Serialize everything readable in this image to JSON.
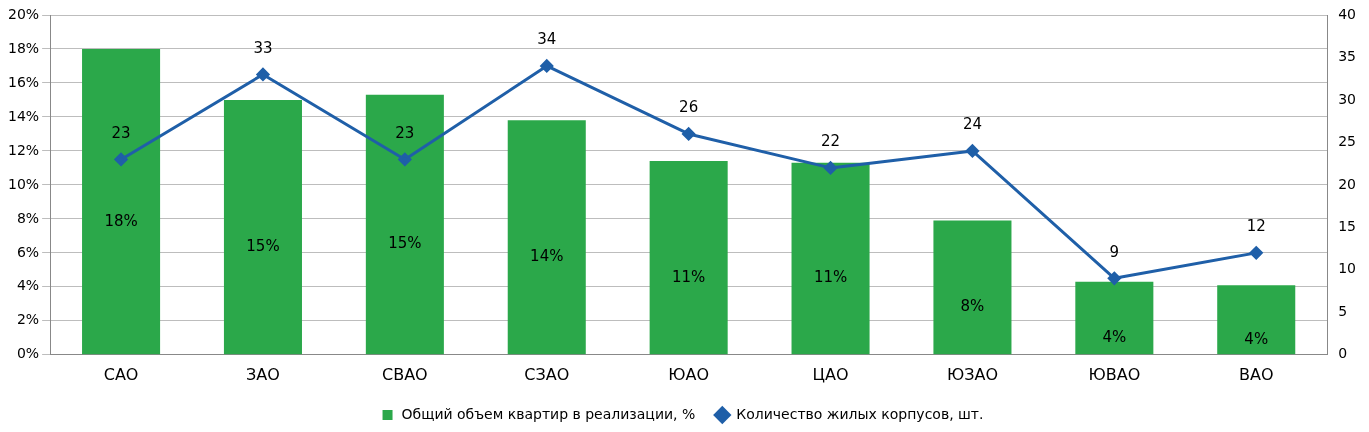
{
  "chart_data": {
    "type": "bar",
    "categories": [
      "САО",
      "ЗАО",
      "СВАО",
      "СЗАО",
      "ЮАО",
      "ЦАО",
      "ЮЗАО",
      "ЮВАО",
      "ВАО"
    ],
    "series": [
      {
        "name": "Общий объем квартир в реализации, %",
        "color": "#2ba84a",
        "values": [
          18,
          15,
          15.3,
          13.8,
          11.4,
          11.3,
          7.9,
          4.3,
          4.1
        ],
        "value_labels": [
          "18%",
          "15%",
          "15%",
          "14%",
          "11%",
          "11%",
          "8%",
          "4%",
          "4%"
        ]
      },
      {
        "name": "Количество жилых корпусов, шт.",
        "type": "line",
        "axis": "y2",
        "color": "#1f5fa8",
        "marker": "diamond",
        "values": [
          23,
          33,
          23,
          34,
          26,
          22,
          24,
          9,
          12
        ],
        "value_labels": [
          "23",
          "33",
          "23",
          "34",
          "26",
          "22",
          "24",
          "9",
          "12"
        ]
      }
    ],
    "ylim": [
      0,
      20
    ],
    "yticks": [
      {
        "value": 0,
        "label": "0%"
      },
      {
        "value": 2,
        "label": "2%"
      },
      {
        "value": 4,
        "label": "4%"
      },
      {
        "value": 6,
        "label": "6%"
      },
      {
        "value": 8,
        "label": "8%"
      },
      {
        "value": 10,
        "label": "10%"
      },
      {
        "value": 12,
        "label": "12%"
      },
      {
        "value": 14,
        "label": "14%"
      },
      {
        "value": 16,
        "label": "16%"
      },
      {
        "value": 18,
        "label": "18%"
      },
      {
        "value": 20,
        "label": "20%"
      }
    ],
    "y2lim": [
      0,
      40
    ],
    "y2ticks": [
      0,
      5,
      10,
      15,
      20,
      25,
      30,
      35,
      40
    ],
    "grid": "y",
    "legend": "bottom"
  }
}
